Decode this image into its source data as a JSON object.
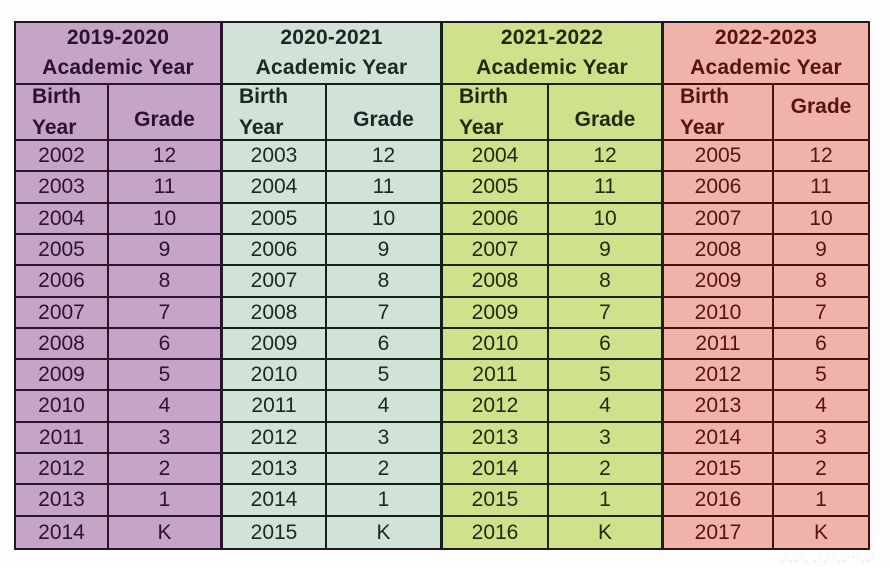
{
  "chart_data": {
    "type": "table",
    "description": "Birth year to grade conversion for four academic years",
    "groups": [
      {
        "title": "2019-2020\nAcademic Year",
        "col_headers": [
          "Birth\nYear",
          "Grade"
        ],
        "colors": {
          "bg": "#c6a4c7",
          "text": "#2e1130",
          "border": "#2a1429"
        },
        "rows": [
          [
            "2002",
            "12"
          ],
          [
            "2003",
            "11"
          ],
          [
            "2004",
            "10"
          ],
          [
            "2005",
            "9"
          ],
          [
            "2006",
            "8"
          ],
          [
            "2007",
            "7"
          ],
          [
            "2008",
            "6"
          ],
          [
            "2009",
            "5"
          ],
          [
            "2010",
            "4"
          ],
          [
            "2011",
            "3"
          ],
          [
            "2012",
            "2"
          ],
          [
            "2013",
            "1"
          ],
          [
            "2014",
            "K"
          ]
        ]
      },
      {
        "title": "2020-2021\nAcademic Year",
        "col_headers": [
          "Birth\nYear",
          "Grade"
        ],
        "colors": {
          "bg": "#d1e2d8",
          "text": "#1b2823",
          "border": "#14201a"
        },
        "rows": [
          [
            "2003",
            "12"
          ],
          [
            "2004",
            "11"
          ],
          [
            "2005",
            "10"
          ],
          [
            "2006",
            "9"
          ],
          [
            "2007",
            "8"
          ],
          [
            "2008",
            "7"
          ],
          [
            "2009",
            "6"
          ],
          [
            "2010",
            "5"
          ],
          [
            "2011",
            "4"
          ],
          [
            "2012",
            "3"
          ],
          [
            "2013",
            "2"
          ],
          [
            "2014",
            "1"
          ],
          [
            "2015",
            "K"
          ]
        ]
      },
      {
        "title": "2021-2022\nAcademic Year",
        "col_headers": [
          "Birth\nYear",
          "Grade"
        ],
        "colors": {
          "bg": "#cfe18b",
          "text": "#1f2a10",
          "border": "#1b250d"
        },
        "rows": [
          [
            "2004",
            "12"
          ],
          [
            "2005",
            "11"
          ],
          [
            "2006",
            "10"
          ],
          [
            "2007",
            "9"
          ],
          [
            "2008",
            "8"
          ],
          [
            "2009",
            "7"
          ],
          [
            "2010",
            "6"
          ],
          [
            "2011",
            "5"
          ],
          [
            "2012",
            "4"
          ],
          [
            "2013",
            "3"
          ],
          [
            "2014",
            "2"
          ],
          [
            "2015",
            "1"
          ],
          [
            "2016",
            "K"
          ]
        ]
      },
      {
        "title": "2022-2023\nAcademic Year",
        "col_headers": [
          "Birth\nYear",
          "Grade"
        ],
        "colors": {
          "bg": "#efb3aa",
          "text": "#551312",
          "border": "#451210"
        },
        "rows": [
          [
            "2005",
            "12"
          ],
          [
            "2006",
            "11"
          ],
          [
            "2007",
            "10"
          ],
          [
            "2008",
            "9"
          ],
          [
            "2009",
            "8"
          ],
          [
            "2010",
            "7"
          ],
          [
            "2011",
            "6"
          ],
          [
            "2012",
            "5"
          ],
          [
            "2013",
            "4"
          ],
          [
            "2014",
            "3"
          ],
          [
            "2015",
            "2"
          ],
          [
            "2016",
            "1"
          ],
          [
            "2017",
            "K"
          ]
        ]
      }
    ]
  },
  "watermark": {
    "text": "·˙··˙·  ·˙·˙˙··˙˙˙··˙"
  }
}
